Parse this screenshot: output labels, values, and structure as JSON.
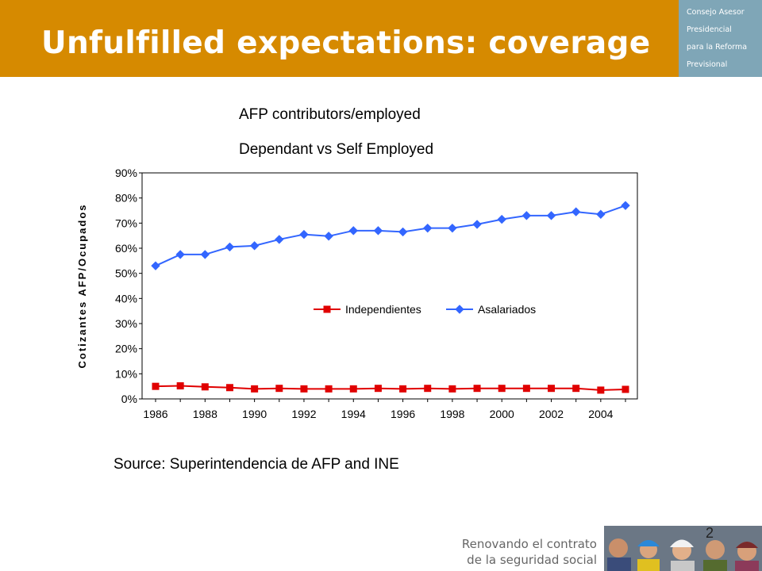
{
  "header": {
    "title": "Unfulfilled expectations: coverage"
  },
  "brand": {
    "lines": [
      "Consejo Asesor",
      "Presidencial",
      "para la Reforma",
      "Previsional"
    ]
  },
  "subtitle": {
    "line1": "AFP contributors/employed",
    "line2": "Dependant vs Self Employed"
  },
  "source": "Source: Superintendencia  de AFP and INE",
  "footer": {
    "line1": "Renovando el contrato",
    "line2": "de la seguridad social",
    "page_number": "2"
  },
  "colors": {
    "header": "#D68A00",
    "brand_box": "#7FA6B7",
    "independientes": "#E00000",
    "asalariados": "#3366FF"
  },
  "chart_data": {
    "type": "line",
    "ylabel": "Cotizantes AFP/Ocupados",
    "xlabel": "",
    "x": [
      1986,
      1987,
      1988,
      1989,
      1990,
      1991,
      1992,
      1993,
      1994,
      1995,
      1996,
      1997,
      1998,
      1999,
      2000,
      2001,
      2002,
      2003,
      2004,
      2005
    ],
    "x_tick_labels": [
      "1986",
      "1988",
      "1990",
      "1992",
      "1994",
      "1996",
      "1998",
      "2000",
      "2002",
      "2004"
    ],
    "y_tick_labels": [
      "0%",
      "10%",
      "20%",
      "30%",
      "40%",
      "50%",
      "60%",
      "70%",
      "80%",
      "90%"
    ],
    "ylim": [
      0,
      0.9
    ],
    "grid": false,
    "legend_position": "center",
    "series": [
      {
        "name": "Independientes",
        "marker": "square",
        "color": "#E00000",
        "values": [
          0.05,
          0.052,
          0.048,
          0.045,
          0.04,
          0.042,
          0.04,
          0.04,
          0.04,
          0.042,
          0.04,
          0.042,
          0.04,
          0.042,
          0.042,
          0.042,
          0.042,
          0.042,
          0.035,
          0.038
        ]
      },
      {
        "name": "Asalariados",
        "marker": "diamond",
        "color": "#3366FF",
        "values": [
          0.53,
          0.575,
          0.575,
          0.605,
          0.61,
          0.635,
          0.655,
          0.648,
          0.67,
          0.67,
          0.665,
          0.68,
          0.68,
          0.695,
          0.715,
          0.73,
          0.73,
          0.745,
          0.735,
          0.77
        ]
      }
    ]
  }
}
